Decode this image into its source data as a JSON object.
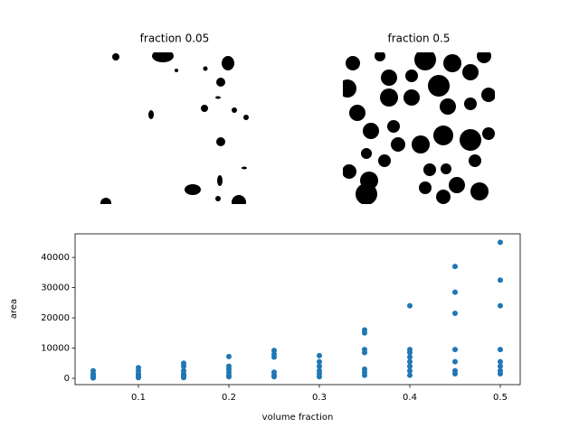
{
  "chart_data": [
    {
      "type": "image",
      "title": "fraction 0.05"
    },
    {
      "type": "image",
      "title": "fraction 0.5"
    },
    {
      "type": "scatter",
      "xlabel": "volume fraction",
      "ylabel": "area",
      "color": "#1f77b4",
      "x": [
        0.05,
        0.05,
        0.05,
        0.05,
        0.05,
        0.05,
        0.1,
        0.1,
        0.1,
        0.1,
        0.1,
        0.1,
        0.15,
        0.15,
        0.15,
        0.15,
        0.15,
        0.15,
        0.15,
        0.2,
        0.2,
        0.2,
        0.2,
        0.2,
        0.2,
        0.25,
        0.25,
        0.25,
        0.25,
        0.25,
        0.25,
        0.3,
        0.3,
        0.3,
        0.3,
        0.3,
        0.3,
        0.35,
        0.35,
        0.35,
        0.35,
        0.35,
        0.35,
        0.35,
        0.4,
        0.4,
        0.4,
        0.4,
        0.4,
        0.4,
        0.4,
        0.4,
        0.45,
        0.45,
        0.45,
        0.45,
        0.45,
        0.45,
        0.45,
        0.5,
        0.5,
        0.5,
        0.5,
        0.5,
        0.5,
        0.5,
        0.5
      ],
      "y": [
        2500,
        1500,
        1000,
        500,
        200,
        100,
        3500,
        2500,
        1500,
        1000,
        500,
        200,
        5000,
        4000,
        2500,
        1500,
        1000,
        500,
        200,
        7200,
        4000,
        3000,
        2000,
        1000,
        500,
        9200,
        8000,
        7000,
        2000,
        1000,
        500,
        7500,
        5500,
        4000,
        2500,
        1500,
        500,
        16000,
        15000,
        9500,
        8500,
        3000,
        2000,
        1000,
        24000,
        9500,
        8500,
        7000,
        5500,
        4000,
        2500,
        1000,
        37000,
        28500,
        21500,
        9500,
        5500,
        2500,
        1500,
        45000,
        32500,
        24000,
        9500,
        5500,
        4000,
        2500,
        1500
      ],
      "xlim": [
        0.03,
        0.522
      ],
      "ylim": [
        -2100,
        47800
      ],
      "xticks": [
        0.1,
        0.2,
        0.3,
        0.4,
        0.5
      ],
      "yticks": [
        0,
        10000,
        20000,
        30000,
        40000
      ]
    }
  ]
}
